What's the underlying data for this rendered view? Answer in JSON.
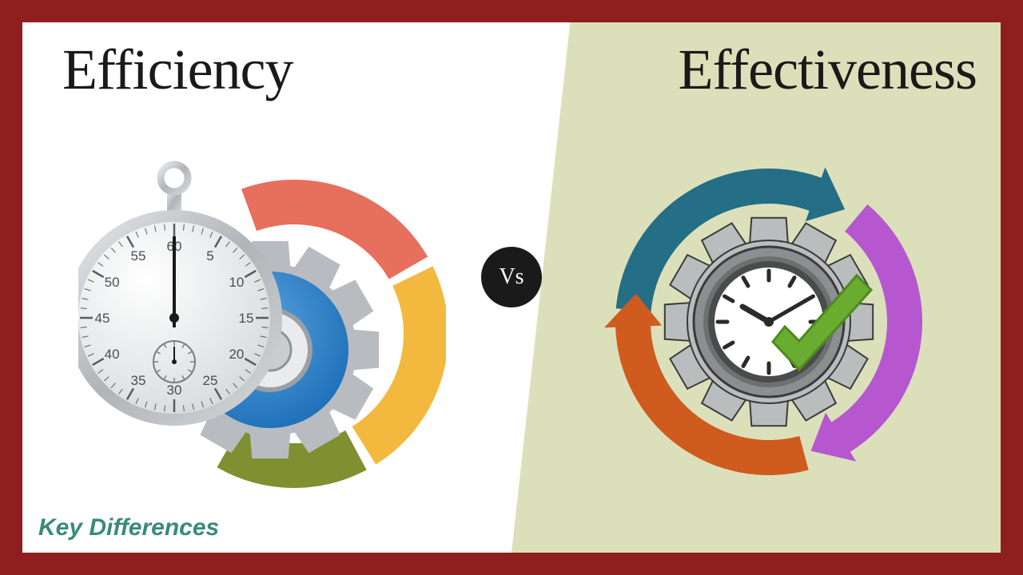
{
  "frame": {
    "color": "#8f1e1e"
  },
  "panels": {
    "left_bg": "#ffffff",
    "right_bg": "#dce0ba"
  },
  "titles": {
    "left": "Efficiency",
    "right": "Effectiveness",
    "fontsize": 72,
    "color": "#1a1a1a"
  },
  "vs": {
    "label": "Vs",
    "bg": "#1a1a1a",
    "color": "#ffffff",
    "diameter": 76,
    "fontsize": 28
  },
  "footer": {
    "label": "Key Differences",
    "color": "#3a8a7a",
    "fontsize": 30
  },
  "efficiency_graphic": {
    "gauge_colors": {
      "top": "#e76f5e",
      "mid": "#f3b93e",
      "bottom": "#808f2f"
    },
    "gauge_thickness": 56,
    "gear": {
      "outer": "#b8bcc0",
      "ring": "#1d6fb8",
      "hub": "#d9dde0",
      "center": "#a6aaae"
    },
    "stopwatch": {
      "case": "#c0c4c8",
      "face": "#eef0f2",
      "tick": "#5a5d60",
      "hand": "#1a1a1a",
      "numbers": [
        "60",
        "5",
        "10",
        "15",
        "20",
        "25",
        "30",
        "35",
        "40",
        "45",
        "50",
        "55"
      ]
    }
  },
  "effectiveness_graphic": {
    "arrow_colors": {
      "top": "#246e86",
      "left": "#cf5b1f",
      "right": "#b657cf"
    },
    "gear": {
      "fill": "#b9bdbd",
      "stroke": "#3a3c3c",
      "ring": "#6d7070"
    },
    "clock": {
      "face": "#ffffff",
      "rim": "#4a4c4c",
      "tick": "#2a2a2a",
      "hand": "#2a2a2a",
      "hour_angle": -60,
      "minute_angle": 60
    },
    "checkmark": {
      "fill": "#6aac2f",
      "stroke": "#4e8a1f"
    }
  }
}
